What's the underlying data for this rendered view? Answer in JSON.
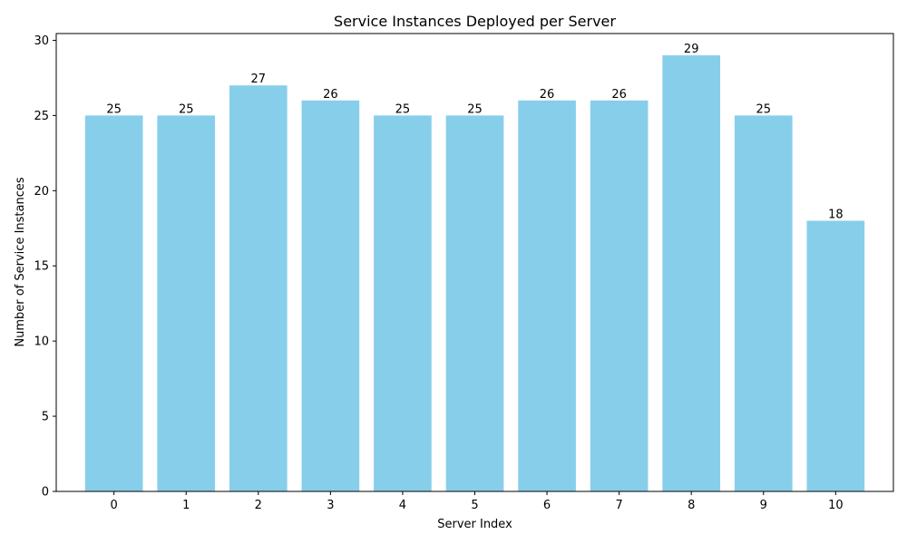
{
  "chart_data": {
    "type": "bar",
    "title": "Service Instances Deployed per Server",
    "xlabel": "Server Index",
    "ylabel": "Number of Service Instances",
    "categories": [
      "0",
      "1",
      "2",
      "3",
      "4",
      "5",
      "6",
      "7",
      "8",
      "9",
      "10"
    ],
    "values": [
      25,
      25,
      27,
      26,
      25,
      25,
      26,
      26,
      29,
      25,
      18
    ],
    "ylim": [
      0,
      30.45
    ],
    "yticks": [
      0,
      5,
      10,
      15,
      20,
      25,
      30
    ],
    "grid": false,
    "legend": false,
    "bar_color": "#87CEEB",
    "data_labels": true
  }
}
